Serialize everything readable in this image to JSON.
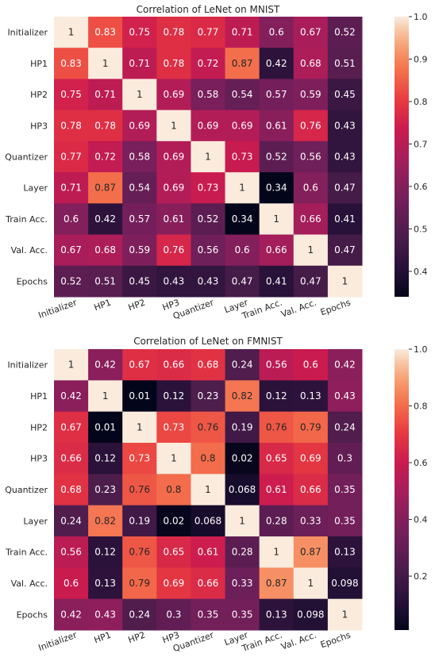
{
  "chart_data": [
    {
      "type": "heatmap",
      "title": "Correlation of LeNet on MNIST",
      "rows": [
        "Initializer",
        "HP1",
        "HP2",
        "HP3",
        "Quantizer",
        "Layer",
        "Train Acc.",
        "Val. Acc.",
        "Epochs"
      ],
      "cols": [
        "Initializer",
        "HP1",
        "HP2",
        "HP3",
        "Quantizer",
        "Layer",
        "Train Acc.",
        "Val. Acc.",
        "Epochs"
      ],
      "values": [
        [
          1,
          0.83,
          0.75,
          0.78,
          0.77,
          0.71,
          0.6,
          0.67,
          0.52
        ],
        [
          0.83,
          1,
          0.71,
          0.78,
          0.72,
          0.87,
          0.42,
          0.68,
          0.51
        ],
        [
          0.75,
          0.71,
          1,
          0.69,
          0.58,
          0.54,
          0.57,
          0.59,
          0.45
        ],
        [
          0.78,
          0.78,
          0.69,
          1,
          0.69,
          0.69,
          0.61,
          0.76,
          0.43
        ],
        [
          0.77,
          0.72,
          0.58,
          0.69,
          1,
          0.73,
          0.52,
          0.56,
          0.43
        ],
        [
          0.71,
          0.87,
          0.54,
          0.69,
          0.73,
          1,
          0.34,
          0.6,
          0.47
        ],
        [
          0.6,
          0.42,
          0.57,
          0.61,
          0.52,
          0.34,
          1,
          0.66,
          0.41
        ],
        [
          0.67,
          0.68,
          0.59,
          0.76,
          0.56,
          0.6,
          0.66,
          1,
          0.47
        ],
        [
          0.52,
          0.51,
          0.45,
          0.43,
          0.43,
          0.47,
          0.41,
          0.47,
          1
        ]
      ],
      "labels": [
        [
          "1",
          "0.83",
          "0.75",
          "0.78",
          "0.77",
          "0.71",
          "0.6",
          "0.67",
          "0.52"
        ],
        [
          "0.83",
          "1",
          "0.71",
          "0.78",
          "0.72",
          "0.87",
          "0.42",
          "0.68",
          "0.51"
        ],
        [
          "0.75",
          "0.71",
          "1",
          "0.69",
          "0.58",
          "0.54",
          "0.57",
          "0.59",
          "0.45"
        ],
        [
          "0.78",
          "0.78",
          "0.69",
          "1",
          "0.69",
          "0.69",
          "0.61",
          "0.76",
          "0.43"
        ],
        [
          "0.77",
          "0.72",
          "0.58",
          "0.69",
          "1",
          "0.73",
          "0.52",
          "0.56",
          "0.43"
        ],
        [
          "0.71",
          "0.87",
          "0.54",
          "0.69",
          "0.73",
          "1",
          "0.34",
          "0.6",
          "0.47"
        ],
        [
          "0.6",
          "0.42",
          "0.57",
          "0.61",
          "0.52",
          "0.34",
          "1",
          "0.66",
          "0.41"
        ],
        [
          "0.67",
          "0.68",
          "0.59",
          "0.76",
          "0.56",
          "0.6",
          "0.66",
          "1",
          "0.47"
        ],
        [
          "0.52",
          "0.51",
          "0.45",
          "0.43",
          "0.43",
          "0.47",
          "0.41",
          "0.47",
          "1"
        ]
      ],
      "colorbar": {
        "min": 0.34,
        "max": 1.0,
        "ticks": [
          "1.0",
          "0.9",
          "0.8",
          "0.7",
          "0.6",
          "0.5",
          "0.4"
        ],
        "tick_values": [
          1.0,
          0.9,
          0.8,
          0.7,
          0.6,
          0.5,
          0.4
        ]
      },
      "colormap": "rocket"
    },
    {
      "type": "heatmap",
      "title": "Correlation of LeNet on FMNIST",
      "rows": [
        "Initializer",
        "HP1",
        "HP2",
        "HP3",
        "Quantizer",
        "Layer",
        "Train Acc.",
        "Val. Acc.",
        "Epochs"
      ],
      "cols": [
        "Initializer",
        "HP1",
        "HP2",
        "HP3",
        "Quantizer",
        "Layer",
        "Train Acc.",
        "Val. Acc.",
        "Epochs"
      ],
      "values": [
        [
          1,
          0.42,
          0.67,
          0.66,
          0.68,
          0.24,
          0.56,
          0.6,
          0.42
        ],
        [
          0.42,
          1,
          0.01,
          0.12,
          0.23,
          0.82,
          0.12,
          0.13,
          0.43
        ],
        [
          0.67,
          0.01,
          1,
          0.73,
          0.76,
          0.19,
          0.76,
          0.79,
          0.24
        ],
        [
          0.66,
          0.12,
          0.73,
          1,
          0.8,
          0.02,
          0.65,
          0.69,
          0.3
        ],
        [
          0.68,
          0.23,
          0.76,
          0.8,
          1,
          0.068,
          0.61,
          0.66,
          0.35
        ],
        [
          0.24,
          0.82,
          0.19,
          0.02,
          0.068,
          1,
          0.28,
          0.33,
          0.35
        ],
        [
          0.56,
          0.12,
          0.76,
          0.65,
          0.61,
          0.28,
          1,
          0.87,
          0.13
        ],
        [
          0.6,
          0.13,
          0.79,
          0.69,
          0.66,
          0.33,
          0.87,
          1,
          0.098
        ],
        [
          0.42,
          0.43,
          0.24,
          0.3,
          0.35,
          0.35,
          0.13,
          0.098,
          1
        ]
      ],
      "labels": [
        [
          "1",
          "0.42",
          "0.67",
          "0.66",
          "0.68",
          "0.24",
          "0.56",
          "0.6",
          "0.42"
        ],
        [
          "0.42",
          "1",
          "0.01",
          "0.12",
          "0.23",
          "0.82",
          "0.12",
          "0.13",
          "0.43"
        ],
        [
          "0.67",
          "0.01",
          "1",
          "0.73",
          "0.76",
          "0.19",
          "0.76",
          "0.79",
          "0.24"
        ],
        [
          "0.66",
          "0.12",
          "0.73",
          "1",
          "0.8",
          "0.02",
          "0.65",
          "0.69",
          "0.3"
        ],
        [
          "0.68",
          "0.23",
          "0.76",
          "0.8",
          "1",
          "0.068",
          "0.61",
          "0.66",
          "0.35"
        ],
        [
          "0.24",
          "0.82",
          "0.19",
          "0.02",
          "0.068",
          "1",
          "0.28",
          "0.33",
          "0.35"
        ],
        [
          "0.56",
          "0.12",
          "0.76",
          "0.65",
          "0.61",
          "0.28",
          "1",
          "0.87",
          "0.13"
        ],
        [
          "0.6",
          "0.13",
          "0.79",
          "0.69",
          "0.66",
          "0.33",
          "0.87",
          "1",
          "0.098"
        ],
        [
          "0.42",
          "0.43",
          "0.24",
          "0.3",
          "0.35",
          "0.35",
          "0.13",
          "0.098",
          "1"
        ]
      ],
      "colorbar": {
        "min": 0.01,
        "max": 1.0,
        "ticks": [
          "1.0",
          "0.8",
          "0.6",
          "0.4",
          "0.2"
        ],
        "tick_values": [
          1.0,
          0.8,
          0.6,
          0.4,
          0.2
        ]
      },
      "colormap": "rocket"
    }
  ]
}
